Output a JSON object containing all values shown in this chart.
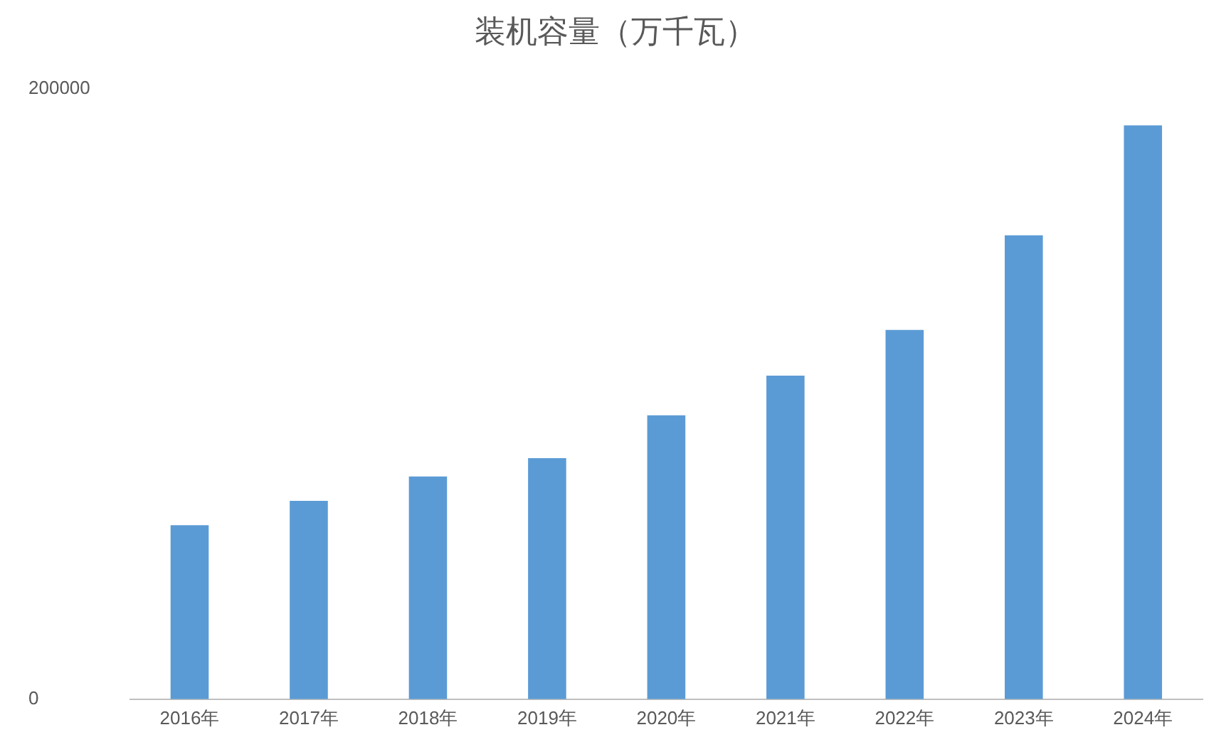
{
  "chart_data": {
    "type": "bar",
    "title": "装机容量（万千瓦）",
    "categories": [
      "2016年",
      "2017年",
      "2018年",
      "2019年",
      "2020年",
      "2021年",
      "2022年",
      "2023年",
      "2024年"
    ],
    "values": [
      57000,
      65000,
      73000,
      79000,
      93000,
      106000,
      121000,
      152000,
      188000
    ],
    "color": "#5b9bd5",
    "ylim": [
      0,
      200000
    ],
    "yticks": [
      0,
      200000
    ],
    "grid": false,
    "legend": false
  }
}
